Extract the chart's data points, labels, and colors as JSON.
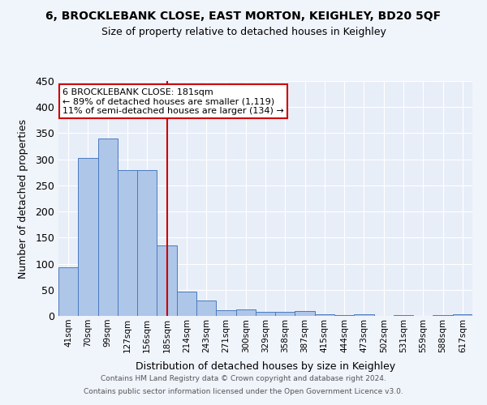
{
  "title": "6, BROCKLEBANK CLOSE, EAST MORTON, KEIGHLEY, BD20 5QF",
  "subtitle": "Size of property relative to detached houses in Keighley",
  "xlabel": "Distribution of detached houses by size in Keighley",
  "ylabel": "Number of detached properties",
  "categories": [
    "41sqm",
    "70sqm",
    "99sqm",
    "127sqm",
    "156sqm",
    "185sqm",
    "214sqm",
    "243sqm",
    "271sqm",
    "300sqm",
    "329sqm",
    "358sqm",
    "387sqm",
    "415sqm",
    "444sqm",
    "473sqm",
    "502sqm",
    "531sqm",
    "559sqm",
    "588sqm",
    "617sqm"
  ],
  "values": [
    93,
    303,
    340,
    279,
    279,
    135,
    47,
    30,
    11,
    13,
    7,
    8,
    9,
    3,
    2,
    3,
    0,
    2,
    0,
    1,
    3
  ],
  "bar_color": "#aec6e8",
  "bar_edge_color": "#4a7bbf",
  "background_color": "#e8eef8",
  "fig_background_color": "#f0f4fb",
  "grid_color": "#ffffff",
  "vline_x_index": 5,
  "vline_color": "#cc0000",
  "annotation_text": "6 BROCKLEBANK CLOSE: 181sqm\n← 89% of detached houses are smaller (1,119)\n11% of semi-detached houses are larger (134) →",
  "annotation_box_color": "#ffffff",
  "annotation_box_edge": "#cc0000",
  "footer_line1": "Contains HM Land Registry data © Crown copyright and database right 2024.",
  "footer_line2": "Contains public sector information licensed under the Open Government Licence v3.0.",
  "ylim": [
    0,
    450
  ],
  "yticks": [
    0,
    50,
    100,
    150,
    200,
    250,
    300,
    350,
    400,
    450
  ]
}
